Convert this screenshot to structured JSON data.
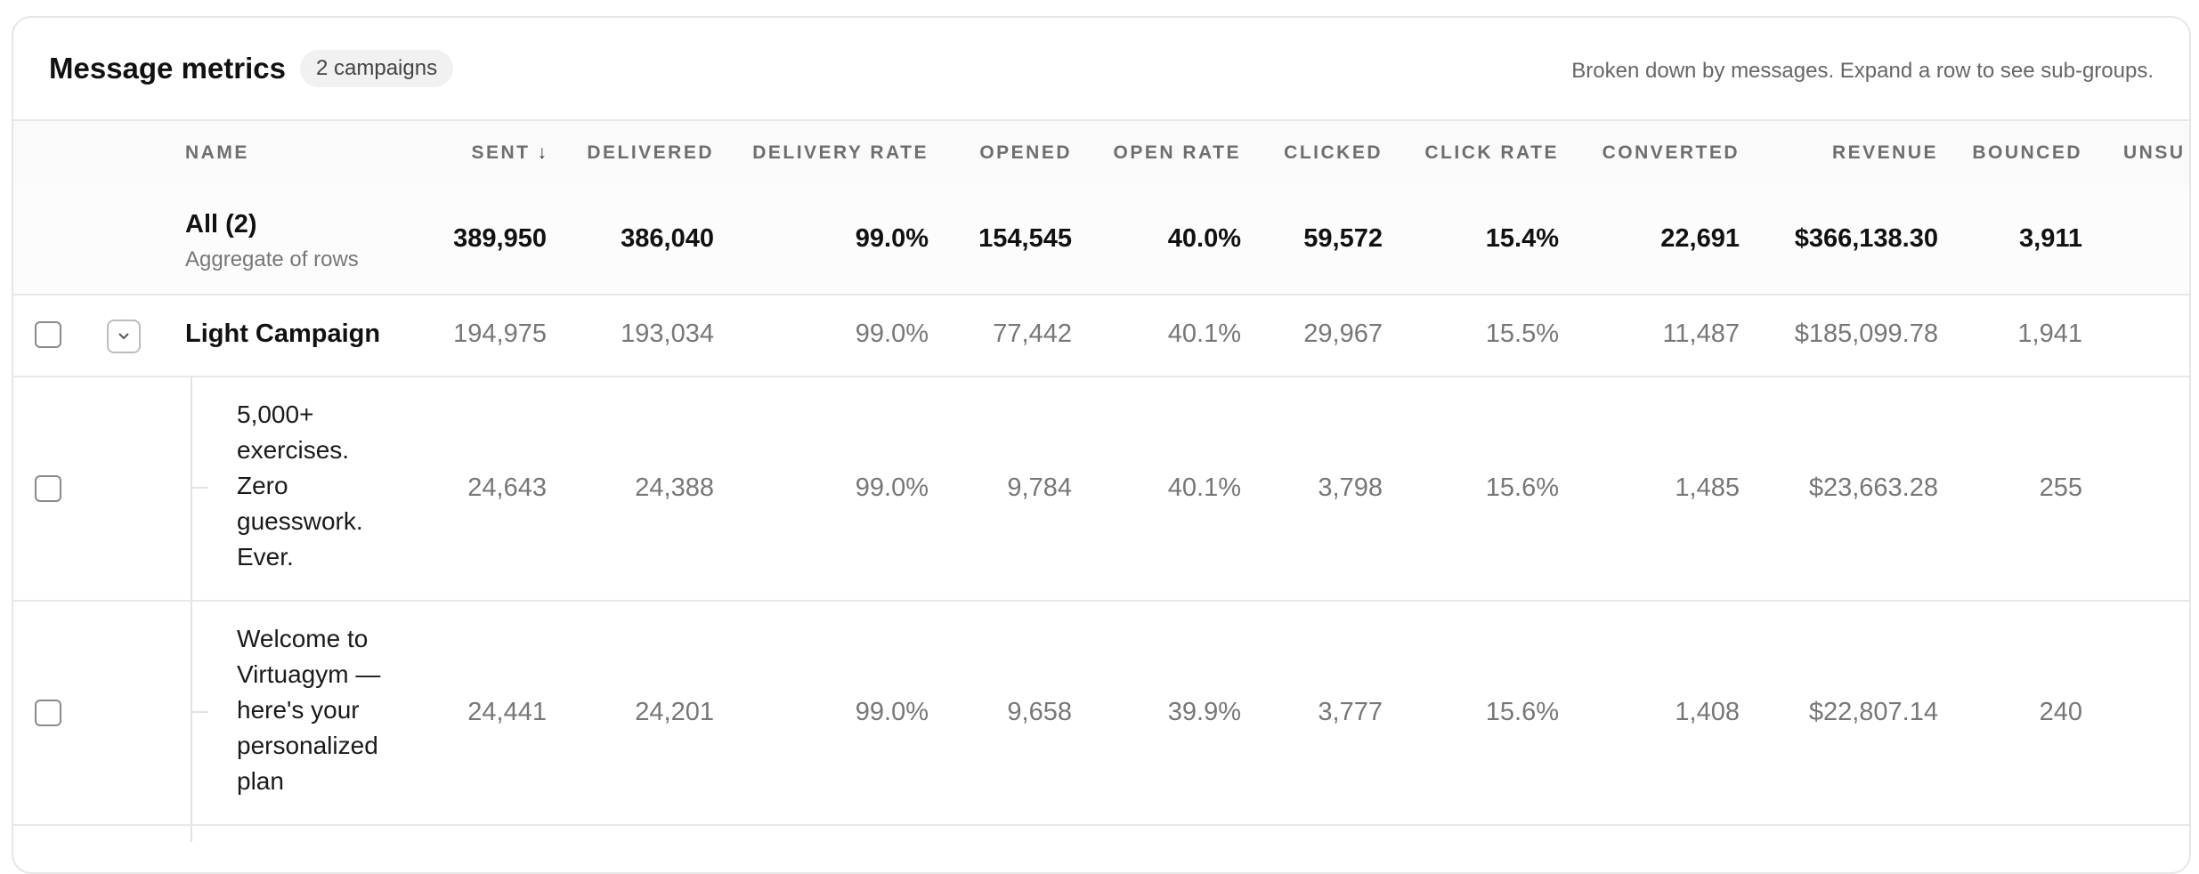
{
  "header": {
    "title": "Message metrics",
    "badge": "2 campaigns",
    "subtitle": "Broken down by messages. Expand a row to see sub-groups."
  },
  "columns": {
    "name": "NAME",
    "sent": "SENT",
    "delivered": "DELIVERED",
    "delivery_rate": "DELIVERY RATE",
    "opened": "OPENED",
    "open_rate": "OPEN RATE",
    "clicked": "CLICKED",
    "click_rate": "CLICK RATE",
    "converted": "CONVERTED",
    "revenue": "REVENUE",
    "bounced": "BOUNCED",
    "unsub": "UNSU"
  },
  "sort": {
    "column": "sent",
    "direction": "desc",
    "icon": "arrow-down-icon"
  },
  "aggregate": {
    "name": "All (2)",
    "sub": "Aggregate of rows",
    "sent": "389,950",
    "delivered": "386,040",
    "delivery_rate": "99.0%",
    "opened": "154,545",
    "open_rate": "40.0%",
    "clicked": "59,572",
    "click_rate": "15.4%",
    "converted": "22,691",
    "revenue": "$366,138.30",
    "bounced": "3,911"
  },
  "campaign": {
    "name": "Light Campaign",
    "sent": "194,975",
    "delivered": "193,034",
    "delivery_rate": "99.0%",
    "opened": "77,442",
    "open_rate": "40.1%",
    "clicked": "29,967",
    "click_rate": "15.5%",
    "converted": "11,487",
    "revenue": "$185,099.78",
    "bounced": "1,941"
  },
  "messages": [
    {
      "name": "5,000+ exercises. Zero guesswork. Ever.",
      "sent": "24,643",
      "delivered": "24,388",
      "delivery_rate": "99.0%",
      "opened": "9,784",
      "open_rate": "40.1%",
      "clicked": "3,798",
      "click_rate": "15.6%",
      "converted": "1,485",
      "revenue": "$23,663.28",
      "bounced": "255"
    },
    {
      "name": "Welcome to Virtuagym — here's your personalized plan",
      "sent": "24,441",
      "delivered": "24,201",
      "delivery_rate": "99.0%",
      "opened": "9,658",
      "open_rate": "39.9%",
      "clicked": "3,777",
      "click_rate": "15.6%",
      "converted": "1,408",
      "revenue": "$22,807.14",
      "bounced": "240"
    }
  ]
}
